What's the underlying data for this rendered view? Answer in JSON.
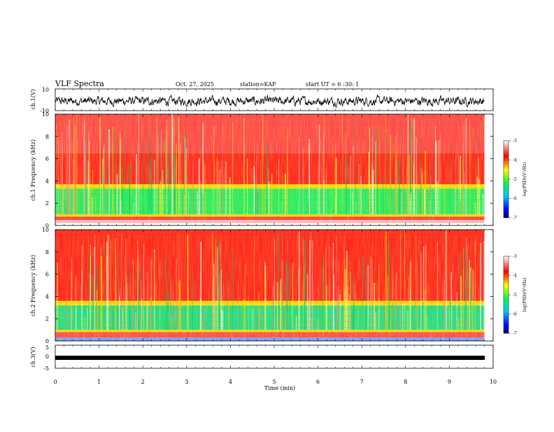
{
  "header": {
    "title": "VLF Spectra",
    "date": "Oct. 27, 2025",
    "station": "station=KAP",
    "start": "start UT =  6 :30: 1"
  },
  "chart_data": [
    {
      "id": "ch1-waveform",
      "type": "line",
      "ylabel": "ch.1(V)",
      "ylim": [
        -10,
        10
      ],
      "y_ticks": [
        "10",
        "-10"
      ],
      "xlim": [
        0,
        10
      ],
      "note": "noisy waveform centered near 0 V, amplitude about -5 to +3 V, ends at 9.8 min"
    },
    {
      "id": "ch1-spectrogram",
      "type": "heatmap",
      "ylabel": "ch.1 Frequency (kHz)",
      "ylim": [
        0,
        10
      ],
      "y_ticks": [
        "10",
        "8",
        "6",
        "4",
        "2",
        "0"
      ],
      "xlim": [
        0,
        10
      ],
      "bands": [
        {
          "from": 0.0,
          "to": 0.2,
          "color": "#ffffff"
        },
        {
          "from": 0.2,
          "to": 0.5,
          "color": "#ffb6c1"
        },
        {
          "from": 0.5,
          "to": 0.8,
          "color": "#ff4040"
        },
        {
          "from": 0.8,
          "to": 1.0,
          "color": "#ffd700"
        },
        {
          "from": 1.0,
          "to": 3.3,
          "color": "#22ee66"
        },
        {
          "from": 3.3,
          "to": 3.7,
          "color": "#ffe000"
        },
        {
          "from": 3.7,
          "to": 6.5,
          "color": "#ff2a1e"
        },
        {
          "from": 6.5,
          "to": 10.0,
          "color": "#ff4b48"
        }
      ],
      "colorbar": {
        "label": "log(PSD)(V²/Hz)",
        "ticks": [
          "-3",
          "-4",
          "-5",
          "-6",
          "-7"
        ],
        "range": [
          -7,
          -3
        ]
      }
    },
    {
      "id": "ch2-spectrogram",
      "type": "heatmap",
      "ylabel": "ch.2 Frequency (kHz)",
      "ylim": [
        0,
        10
      ],
      "y_ticks": [
        "10",
        "8",
        "6",
        "4",
        "2",
        "0"
      ],
      "xlim": [
        0,
        10
      ],
      "bands": [
        {
          "from": 0.0,
          "to": 0.3,
          "color": "#6fa0ff"
        },
        {
          "from": 0.3,
          "to": 0.8,
          "color": "#ff5050"
        },
        {
          "from": 0.8,
          "to": 1.0,
          "color": "#ffd700"
        },
        {
          "from": 1.0,
          "to": 3.2,
          "color": "#22dd88"
        },
        {
          "from": 3.2,
          "to": 3.6,
          "color": "#ffe000"
        },
        {
          "from": 3.6,
          "to": 10.0,
          "color": "#ff2a1e"
        }
      ],
      "colorbar": {
        "label": "log(PSD)(V²/Hz)",
        "ticks": [
          "-3",
          "-4",
          "-5",
          "-6",
          "-7"
        ],
        "range": [
          -7,
          -3
        ]
      }
    },
    {
      "id": "ch3-waveform",
      "type": "line",
      "ylabel": "ch.3(V)",
      "ylim": [
        -5,
        5
      ],
      "y_ticks": [
        "5",
        "0",
        "-5"
      ],
      "xlim": [
        0,
        10
      ],
      "note": "flat thick band near -1 V until 9.8 min"
    }
  ],
  "x_axis": {
    "label": "Time (min)",
    "ticks": [
      "0",
      "1",
      "2",
      "3",
      "4",
      "5",
      "6",
      "7",
      "8",
      "9",
      "10"
    ]
  },
  "colors": {
    "trace": "#000000",
    "background": "#ffffff"
  }
}
